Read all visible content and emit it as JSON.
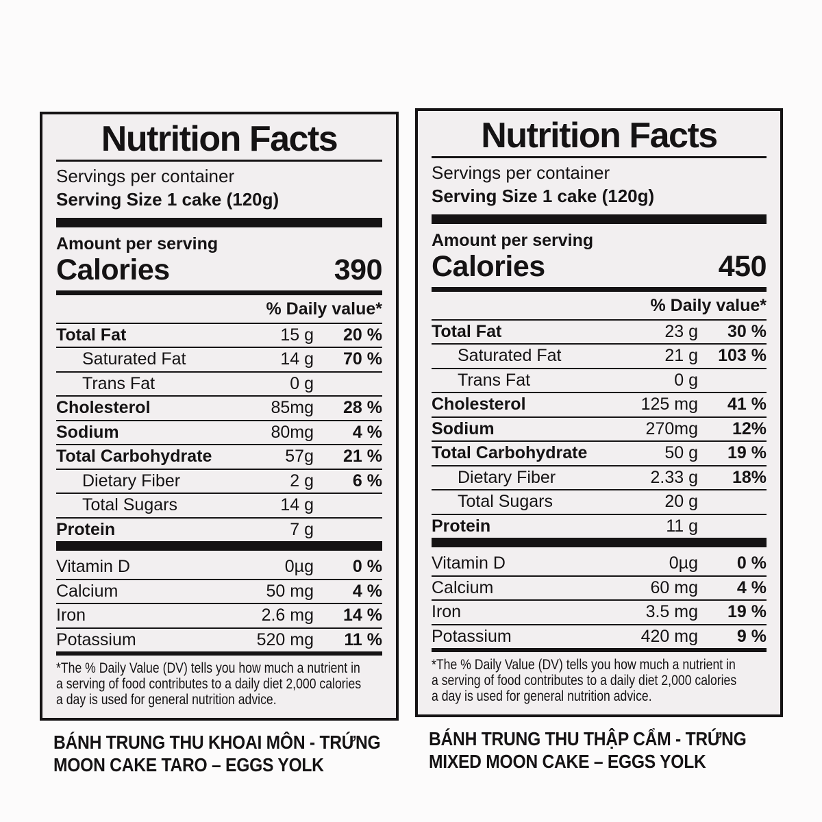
{
  "colors": {
    "page_bg": "#fcfbfb",
    "label_bg": "#f2eff0",
    "ink": "#151314"
  },
  "labels": [
    {
      "title": "Nutrition Facts",
      "servings_per_container": "Servings per container",
      "serving_size": "Serving Size 1 cake (120g)",
      "amount_per_serving": "Amount per serving",
      "calories_label": "Calories",
      "calories_value": "390",
      "daily_value_header": "% Daily value*",
      "rows": [
        {
          "label": "Total Fat",
          "amount": "15 g",
          "dv": "20 %"
        },
        {
          "label": "Saturated Fat",
          "amount": "14 g",
          "dv": "70 %"
        },
        {
          "label": "Trans Fat",
          "amount": "0 g",
          "dv": ""
        },
        {
          "label": "Cholesterol",
          "amount": "85mg",
          "dv": "28 %"
        },
        {
          "label": "Sodium",
          "amount": "80mg",
          "dv": "4 %"
        },
        {
          "label": "Total Carbohydrate",
          "amount": "57g",
          "dv": "21 %"
        },
        {
          "label": "Dietary Fiber",
          "amount": "2 g",
          "dv": "6 %"
        },
        {
          "label": "Total Sugars",
          "amount": "14 g",
          "dv": ""
        },
        {
          "label": "Protein",
          "amount": "7 g",
          "dv": ""
        }
      ],
      "micros": [
        {
          "label": "Vitamin D",
          "amount": "0µg",
          "dv": "0 %"
        },
        {
          "label": "Calcium",
          "amount": "50 mg",
          "dv": "4 %"
        },
        {
          "label": "Iron",
          "amount": "2.6 mg",
          "dv": "14 %"
        },
        {
          "label": "Potassium",
          "amount": "520 mg",
          "dv": "11 %"
        }
      ],
      "footnote_lines": [
        "*The % Daily Value (DV) tells you how much a nutrient in",
        "a serving of food contributes to a daily diet 2,000 calories",
        "a day is used for general nutrition advice."
      ],
      "caption_line1": "BÁNH TRUNG THU KHOAI MÔN - TRỨNG",
      "caption_line2": "MOON CAKE TARO – EGGS YOLK"
    },
    {
      "title": "Nutrition Facts",
      "servings_per_container": "Servings per container",
      "serving_size": "Serving Size 1 cake (120g)",
      "amount_per_serving": "Amount per serving",
      "calories_label": "Calories",
      "calories_value": "450",
      "daily_value_header": "% Daily value*",
      "rows": [
        {
          "label": "Total Fat",
          "amount": "23 g",
          "dv": "30 %"
        },
        {
          "label": "Saturated Fat",
          "amount": "21 g",
          "dv": "103 %"
        },
        {
          "label": "Trans Fat",
          "amount": "0 g",
          "dv": ""
        },
        {
          "label": "Cholesterol",
          "amount": "125 mg",
          "dv": "41 %"
        },
        {
          "label": "Sodium",
          "amount": "270mg",
          "dv": "12%"
        },
        {
          "label": "Total Carbohydrate",
          "amount": "50 g",
          "dv": "19 %"
        },
        {
          "label": "Dietary Fiber",
          "amount": "2.33 g",
          "dv": "18%"
        },
        {
          "label": "Total Sugars",
          "amount": "20 g",
          "dv": ""
        },
        {
          "label": "Protein",
          "amount": "11 g",
          "dv": ""
        }
      ],
      "micros": [
        {
          "label": "Vitamin D",
          "amount": "0µg",
          "dv": "0 %"
        },
        {
          "label": "Calcium",
          "amount": "60 mg",
          "dv": "4 %"
        },
        {
          "label": "Iron",
          "amount": "3.5 mg",
          "dv": "19 %"
        },
        {
          "label": "Potassium",
          "amount": "420 mg",
          "dv": "9 %"
        }
      ],
      "footnote_lines": [
        "*The % Daily Value (DV) tells you how much a nutrient in",
        "a serving of food contributes to a daily diet 2,000 calories",
        "a day is used for general nutrition advice."
      ],
      "caption_line1": "BÁNH TRUNG THU THẬP CẨM - TRỨNG",
      "caption_line2": "MIXED MOON CAKE – EGGS YOLK"
    }
  ]
}
